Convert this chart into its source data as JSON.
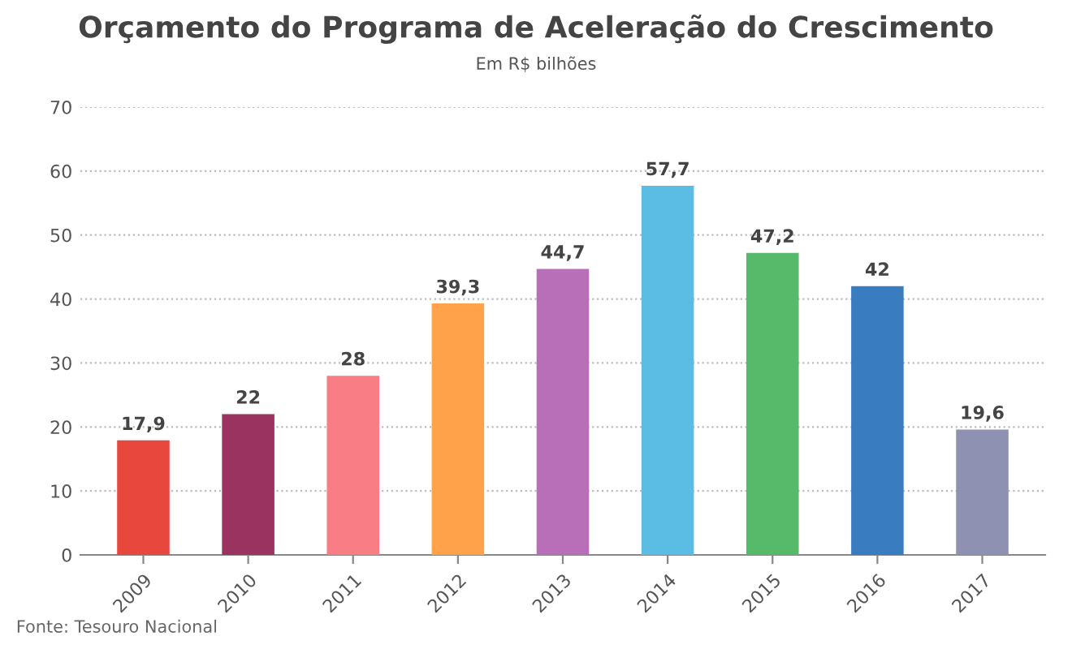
{
  "chart_data": {
    "type": "bar",
    "title": "Orçamento do Programa de Aceleração do Crescimento",
    "subtitle": "Em R$ bilhões",
    "categories": [
      "2009",
      "2010",
      "2011",
      "2012",
      "2013",
      "2014",
      "2015",
      "2016",
      "2017"
    ],
    "values": [
      17.9,
      22,
      28,
      39.3,
      44.7,
      57.7,
      47.2,
      42,
      19.6
    ],
    "value_labels": [
      "17,9",
      "22",
      "28",
      "39,3",
      "44,7",
      "57,7",
      "47,2",
      "42",
      "19,6"
    ],
    "colors": [
      "#e8473e",
      "#9b3361",
      "#f87d85",
      "#ffa24a",
      "#b86fb8",
      "#5bbde3",
      "#57b96a",
      "#3a7cc0",
      "#8f91b3"
    ],
    "ylim": [
      0,
      70
    ],
    "yticks": [
      0,
      10,
      20,
      30,
      40,
      50,
      60,
      70
    ],
    "grid": "y",
    "annotations": [
      "Fonte: Tesouro Nacional"
    ]
  }
}
